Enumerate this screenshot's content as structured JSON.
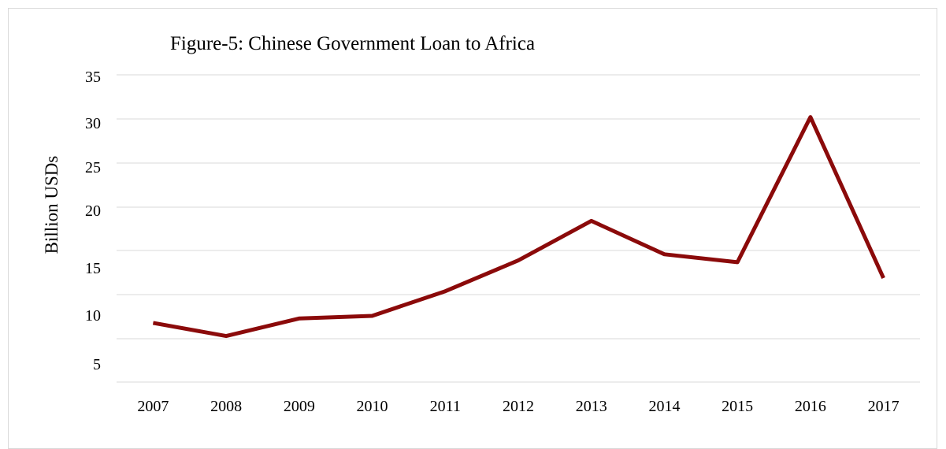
{
  "chart_data": {
    "type": "line",
    "title": "Figure-5: Chinese Government Loan to Africa",
    "xlabel": "",
    "ylabel": "Billion USDs",
    "categories": [
      "2007",
      "2008",
      "2009",
      "2010",
      "2011",
      "2012",
      "2013",
      "2014",
      "2015",
      "2016",
      "2017"
    ],
    "series": [
      {
        "values": [
          6.8,
          5.3,
          7.3,
          7.6,
          10.4,
          13.9,
          18.4,
          14.6,
          13.7,
          30.2,
          11.9
        ]
      }
    ],
    "yticks": [
      "5",
      "10",
      "15",
      "20",
      "25",
      "30",
      "35"
    ],
    "ylim": [
      1.5,
      35
    ],
    "grid": true,
    "legend": "none",
    "colors": {
      "line": "#8b0a0a",
      "grid": "#d9d9d9"
    }
  }
}
